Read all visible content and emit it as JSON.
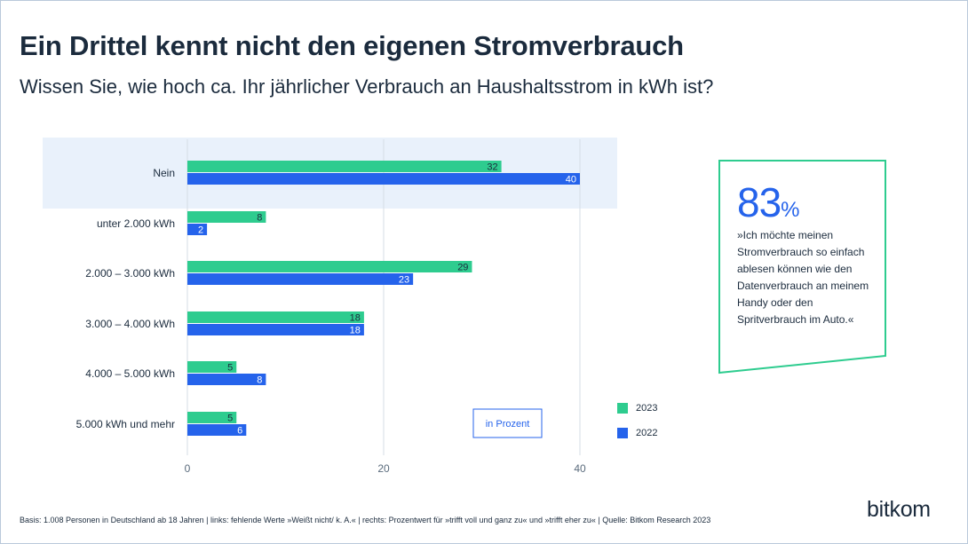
{
  "header": {
    "title": "Ein Drittel kennt nicht den eigenen Stromverbrauch",
    "subtitle": "Wissen Sie, wie hoch ca. Ihr jährlicher Verbrauch an Haushaltsstrom in kWh ist?"
  },
  "chart_data": {
    "type": "bar",
    "orientation": "horizontal",
    "categories": [
      "Nein",
      "unter 2.000 kWh",
      "2.000 – 3.000 kWh",
      "3.000 – 4.000 kWh",
      "4.000 – 5.000 kWh",
      "5.000 kWh und mehr"
    ],
    "series": [
      {
        "name": "2023",
        "values": [
          32,
          8,
          29,
          18,
          5,
          5
        ],
        "color": "#2ecc8f"
      },
      {
        "name": "2022",
        "values": [
          40,
          2,
          23,
          18,
          8,
          6
        ],
        "color": "#2563eb"
      }
    ],
    "xlim": [
      0,
      40
    ],
    "x_ticks": [
      0,
      20,
      40
    ],
    "unit_note": "in Prozent",
    "highlighted_category": "Nein",
    "grid": true,
    "legend_position": "right"
  },
  "callout": {
    "number": "83",
    "percent": "%",
    "text": "»Ich möchte meinen Stromverbrauch so einfach ablesen können wie den Datenverbrauch an meinem Handy oder den Spritverbrauch im Auto.«",
    "border_color": "#2ecc8f"
  },
  "footer": {
    "text": "Basis: 1.008 Personen in Deutschland ab 18 Jahren | links: fehlende Werte »Weißt nicht/ k. A.« | rechts: Prozentwert für »trifft voll und ganz zu« und »trifft eher zu« | Quelle: Bitkom Research 2023"
  },
  "logo": {
    "text": "bitkom"
  },
  "colors": {
    "green": "#2ecc8f",
    "blue": "#2563eb",
    "highlight_bg": "#e9f1fb",
    "text": "#1b2b3d"
  }
}
